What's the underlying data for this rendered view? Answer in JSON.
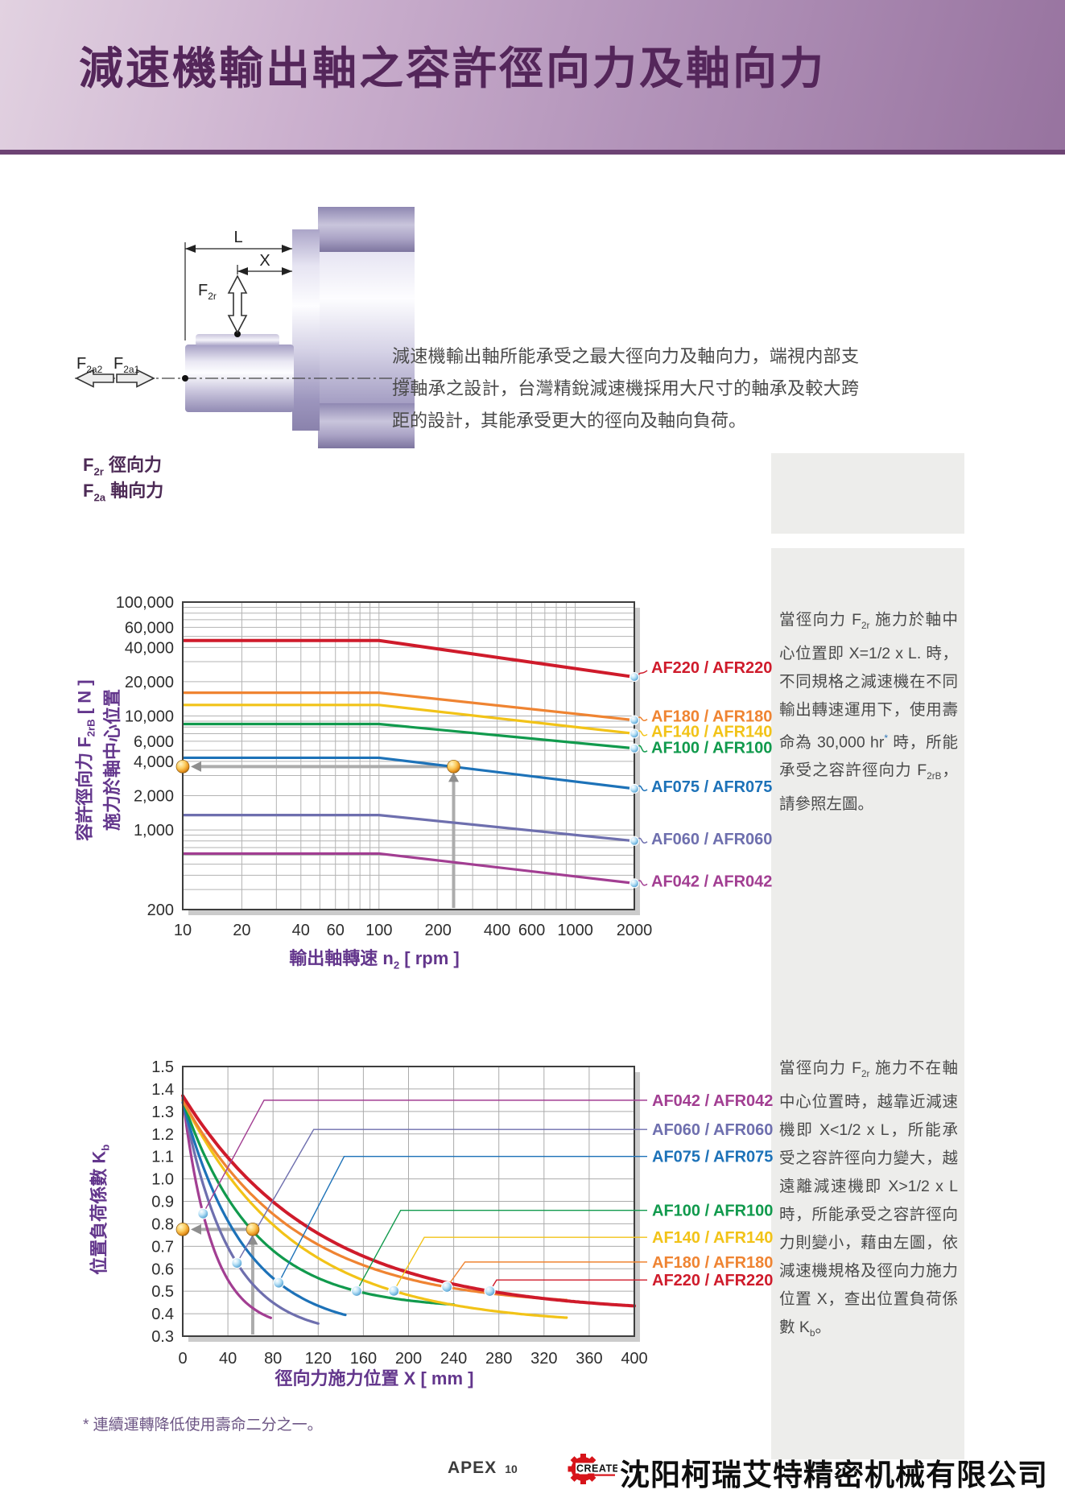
{
  "header": {
    "title": "減速機輸出軸之容許徑向力及軸向力"
  },
  "diagram": {
    "dim_length_label": "L",
    "dim_position_label": "X",
    "radial_force_segments": [
      {
        "t": "F"
      },
      {
        "t": "2r",
        "sub": true
      }
    ],
    "axial_force_left_segments": [
      {
        "t": "F"
      },
      {
        "t": "2a2",
        "sub": true
      }
    ],
    "axial_force_right_segments": [
      {
        "t": "F"
      },
      {
        "t": "2a1",
        "sub": true
      }
    ],
    "legend": [
      {
        "segments": [
          {
            "t": "F"
          },
          {
            "t": "2r",
            "sub": true
          },
          {
            "t": " 徑向力"
          }
        ]
      },
      {
        "segments": [
          {
            "t": "F"
          },
          {
            "t": "2a",
            "sub": true
          },
          {
            "t": " 軸向力"
          }
        ]
      }
    ]
  },
  "intro_text": "減速機輸出軸所能承受之最大徑向力及軸向力，端視内部支撐軸承之設計，台灣精銳減速機採用大尺寸的軸承及較大跨距的設計，其能承受更大的徑向及軸向負荷。",
  "side_note_1": {
    "segments": [
      {
        "t": "當徑向力 F"
      },
      {
        "t": "2r",
        "sub": true
      },
      {
        "t": " 施力於軸中心位置即 X=1/2 x L. 時，不同規格之減速機在不同輸出轉速運用下，使用壽命為 30,000 hr"
      },
      {
        "t": "*",
        "sup": true,
        "color": "#2E74B5"
      },
      {
        "t": " 時，所能承受之容許徑向力 F"
      },
      {
        "t": "2rB",
        "sub": true
      },
      {
        "t": "，請參照左圖。"
      }
    ]
  },
  "side_note_2": {
    "segments": [
      {
        "t": "當徑向力 F"
      },
      {
        "t": "2r",
        "sub": true
      },
      {
        "t": " 施力不在軸中心位置時，越靠近減速機即 X<1/2 x L，所能承受之容許徑向力變大，越遠離減速機即 X>1/2 x L 時，所能承受之容許徑向力則變小，藉由左圖，依減速機規格及徑向力施力位置 X，查出位置負荷係數 K"
      },
      {
        "t": "b",
        "sub": true
      },
      {
        "t": "。"
      }
    ]
  },
  "chart_data": [
    {
      "type": "line",
      "x_scale": "log",
      "y_scale": "log",
      "grid": true,
      "xlim": [
        10,
        2000
      ],
      "ylim": [
        200,
        100000
      ],
      "xlabel_segments": [
        {
          "t": "輸出軸轉速 "
        },
        {
          "t": "n",
          "b": true
        },
        {
          "t": "2",
          "sub": true,
          "b": true
        },
        {
          "t": " [ rpm ]",
          "b": true
        }
      ],
      "ylabel_line1_segments": [
        {
          "t": "容許徑向力 ",
          "b": true
        },
        {
          "t": "F",
          "b": true
        },
        {
          "t": "2rB",
          "sub": true,
          "b": true
        },
        {
          "t": " [ N ]",
          "b": true
        }
      ],
      "ylabel_line2_segments": [
        {
          "t": "施力於軸中心位置",
          "b": true
        }
      ],
      "x_ticks": [
        {
          "v": 10,
          "l": "10"
        },
        {
          "v": 20,
          "l": "20"
        },
        {
          "v": 40,
          "l": "40"
        },
        {
          "v": 60,
          "l": "60"
        },
        {
          "v": 100,
          "l": "100"
        },
        {
          "v": 200,
          "l": "200"
        },
        {
          "v": 400,
          "l": "400"
        },
        {
          "v": 600,
          "l": "600"
        },
        {
          "v": 1000,
          "l": "1000"
        },
        {
          "v": 2000,
          "l": "2000"
        }
      ],
      "y_ticks": [
        {
          "v": 200,
          "l": "200"
        },
        {
          "v": 1000,
          "l": "1,000"
        },
        {
          "v": 2000,
          "l": "2,000"
        },
        {
          "v": 4000,
          "l": "4,000"
        },
        {
          "v": 6000,
          "l": "6,000"
        },
        {
          "v": 10000,
          "l": "10,000"
        },
        {
          "v": 20000,
          "l": "20,000"
        },
        {
          "v": 40000,
          "l": "40,000"
        },
        {
          "v": 60000,
          "l": "60,000"
        },
        {
          "v": 100000,
          "l": "100,000"
        }
      ],
      "series": [
        {
          "name": "AF220 / AFR220",
          "color": "#CF1B2B",
          "flat_value_N": 46000,
          "flat_until_rpm": 100,
          "value_at_2000rpm_N": 22000,
          "width": 4,
          "label_dy": -12
        },
        {
          "name": "AF180 / AFR180",
          "color": "#EF8432",
          "flat_value_N": 16000,
          "flat_until_rpm": 100,
          "value_at_2000rpm_N": 9200,
          "width": 3.2,
          "label_dy": -5
        },
        {
          "name": "AF140 / AFR140",
          "color": "#F2C318",
          "flat_value_N": 12500,
          "flat_until_rpm": 100,
          "value_at_2000rpm_N": 7000,
          "width": 3.2,
          "label_dy": -3
        },
        {
          "name": "AF100 / AFR100",
          "color": "#119A4D",
          "flat_value_N": 8500,
          "flat_until_rpm": 100,
          "value_at_2000rpm_N": 5200,
          "width": 3.2,
          "label_dy": -1
        },
        {
          "name": "AF075 / AFR075",
          "color": "#1D72B8",
          "flat_value_N": 4300,
          "flat_until_rpm": 100,
          "value_at_2000rpm_N": 2300,
          "width": 3.2,
          "label_dy": -3
        },
        {
          "name": "AF060 / AFR060",
          "color": "#6E6FAE",
          "flat_value_N": 1350,
          "flat_until_rpm": 100,
          "value_at_2000rpm_N": 800,
          "width": 3.2,
          "label_dy": -3
        },
        {
          "name": "AF042 / AFR042",
          "color": "#A23E92",
          "flat_value_N": 620,
          "flat_until_rpm": 100,
          "value_at_2000rpm_N": 340,
          "width": 3.2,
          "label_dy": -3
        }
      ],
      "example_annotation": {
        "rpm": 240,
        "force_N": 3600,
        "line_color": "#ACACAC",
        "arrow_color": "#8E8E8E"
      }
    },
    {
      "type": "line",
      "x_scale": "linear",
      "y_scale": "linear",
      "grid": true,
      "xlim": [
        0,
        400
      ],
      "ylim": [
        0.3,
        1.5
      ],
      "xlabel_segments": [
        {
          "t": "徑向力施力位置 "
        },
        {
          "t": "X [ mm ]",
          "b": true
        }
      ],
      "ylabel_segments": [
        {
          "t": "位置負荷係數 ",
          "b": true
        },
        {
          "t": "K",
          "b": true
        },
        {
          "t": "b",
          "sub": true,
          "b": true
        }
      ],
      "x_ticks": [
        0,
        40,
        80,
        120,
        160,
        200,
        240,
        280,
        320,
        360,
        400
      ],
      "y_ticks": [
        0.3,
        0.4,
        0.5,
        0.6,
        0.7,
        0.8,
        0.9,
        1.0,
        1.1,
        1.2,
        1.3,
        1.4,
        1.5
      ],
      "series": [
        {
          "name": "AF042 / AFR042",
          "color": "#A23E92",
          "kb_at_x0": 1.36,
          "kb_floor": 0.33,
          "decay_tau_mm": 26,
          "x_end_mm": 78,
          "marker": {
            "x_mm": 18,
            "kb": 0.85
          },
          "leader_join_x_mm": 72,
          "label_level_kb": 1.35,
          "width": 3.2
        },
        {
          "name": "AF060 / AFR060",
          "color": "#6E6FAE",
          "kb_at_x0": 1.35,
          "kb_floor": 0.3,
          "decay_tau_mm": 41,
          "x_end_mm": 121,
          "marker": {
            "x_mm": 48,
            "kb": 0.62
          },
          "leader_join_x_mm": 116,
          "label_level_kb": 1.22,
          "width": 3.2
        },
        {
          "name": "AF075 / AFR075",
          "color": "#1D72B8",
          "kb_at_x0": 1.34,
          "kb_floor": 0.32,
          "decay_tau_mm": 55,
          "x_end_mm": 145,
          "marker": {
            "x_mm": 85,
            "kb": 0.56
          },
          "leader_join_x_mm": 143,
          "label_level_kb": 1.1,
          "width": 3.2
        },
        {
          "name": "AF100 / AFR100",
          "color": "#119A4D",
          "kb_at_x0": 1.35,
          "kb_floor": 0.42,
          "decay_tau_mm": 63,
          "x_end_mm": 240,
          "marker": {
            "x_mm": 154,
            "kb": 0.5
          },
          "leader_join_x_mm": 193,
          "label_level_kb": 0.86,
          "width": 3.2
        },
        {
          "name": "AF140 / AFR140",
          "color": "#F2C318",
          "kb_at_x0": 1.35,
          "kb_floor": 0.35,
          "decay_tau_mm": 99,
          "x_end_mm": 340,
          "marker": {
            "x_mm": 187,
            "kb": 0.5
          },
          "leader_join_x_mm": 214,
          "label_level_kb": 0.74,
          "width": 3.2
        },
        {
          "name": "AF180 / AFR180",
          "color": "#EF8432",
          "kb_at_x0": 1.35,
          "kb_floor": 0.43,
          "decay_tau_mm": 100,
          "x_end_mm": 340,
          "marker": {
            "x_mm": 234,
            "kb": 0.49
          },
          "leader_join_x_mm": 250,
          "label_level_kb": 0.63,
          "width": 3.2
        },
        {
          "name": "AF220 / AFR220",
          "color": "#CF1B2B",
          "kb_at_x0": 1.37,
          "kb_floor": 0.4,
          "decay_tau_mm": 120,
          "x_end_mm": 400,
          "marker": {
            "x_mm": 272,
            "kb": 0.475
          },
          "leader_join_x_mm": 278,
          "label_level_kb": 0.55,
          "width": 4
        }
      ],
      "example_annotation": {
        "x_mm": 62,
        "kb": 0.775,
        "line_color": "#ACACAC",
        "arrow_color": "#8E8E8E"
      }
    }
  ],
  "footnote": "* 連續運轉降低使用壽命二分之一。",
  "footer": {
    "brand": "APEX",
    "page_no": "10",
    "logo_letter": "C",
    "logo_text": "CREATE",
    "company": "沈阳柯瑞艾特精密机械有限公司"
  }
}
